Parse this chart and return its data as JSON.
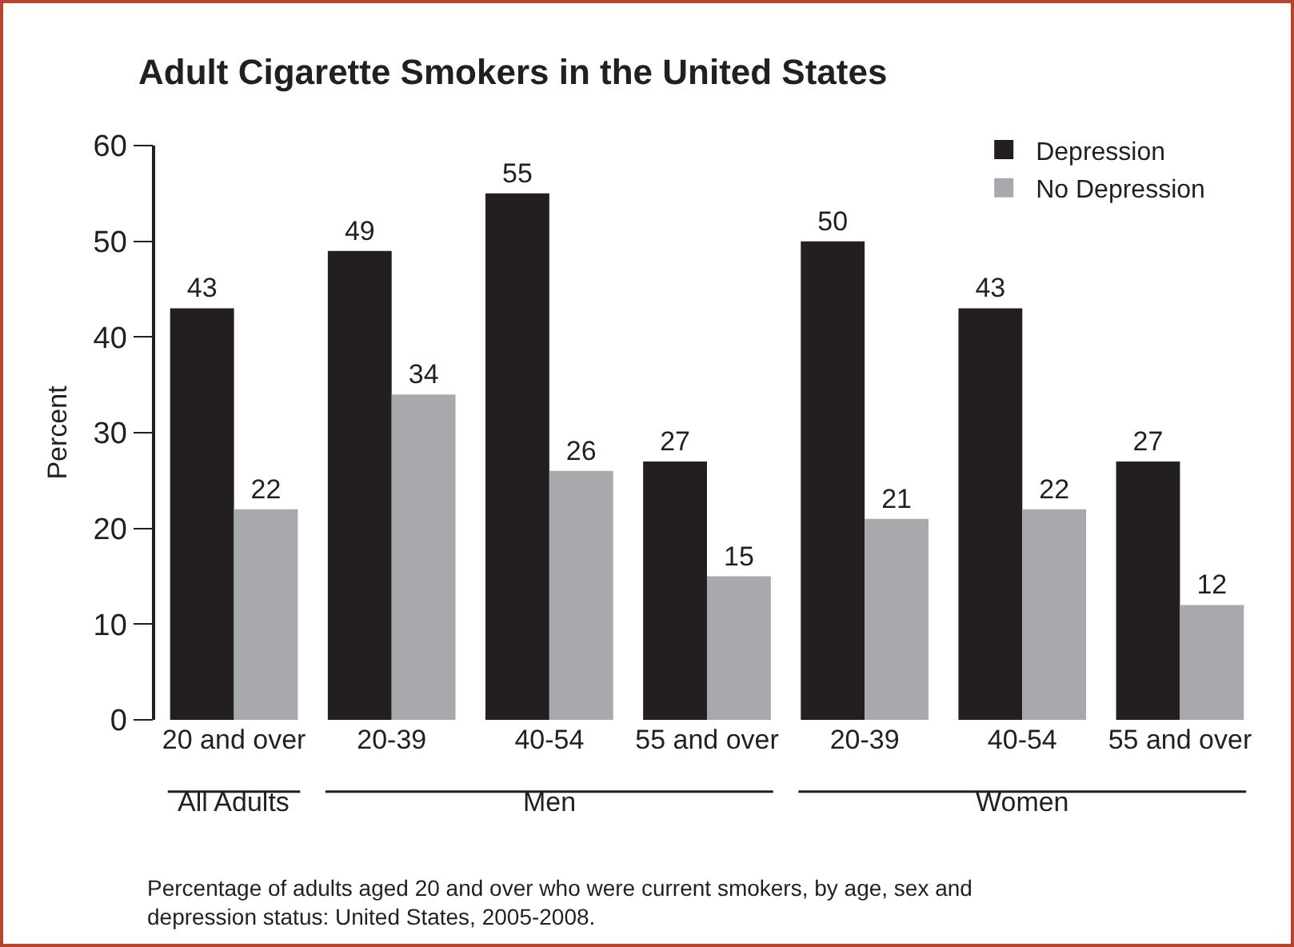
{
  "chart_data": {
    "type": "bar",
    "title": "Adult Cigarette Smokers in the United States",
    "ylabel": "Percent",
    "categories": [
      "20 and over",
      "20-39",
      "40-54",
      "55 and over",
      "20-39",
      "40-54",
      "55 and over"
    ],
    "series": [
      {
        "name": "Depression",
        "color": "#231f20",
        "values": [
          43,
          49,
          55,
          27,
          50,
          43,
          27
        ]
      },
      {
        "name": "No Depression",
        "color": "#a7a9ac",
        "values": [
          22,
          34,
          26,
          15,
          21,
          22,
          12
        ]
      }
    ],
    "ylim": [
      0,
      60
    ],
    "yticks": [
      0,
      10,
      20,
      30,
      40,
      50,
      60
    ],
    "grid": false,
    "legend": "top right",
    "data_labels": true,
    "annotations": [
      "All Adults",
      "Men",
      "Women",
      "Percentage of adults aged 20 and over who were current smokers, by age, sex and depression status: United States, 2005-2008."
    ]
  }
}
